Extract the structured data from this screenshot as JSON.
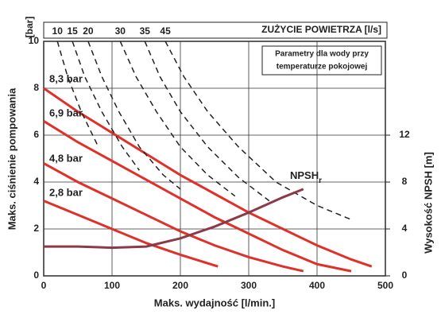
{
  "chart_data": {
    "type": "line",
    "y_unit": "[bar]",
    "y_label": "Maks. ciśnienie pompowania",
    "x_label": "Maks. wydajność [l/min.]",
    "y2_label": "Wysokość NPSH [m]",
    "top_label": "ZUŻYCIE POWIETRZA [l/s]",
    "note": [
      "Parametry dla wody przy",
      "temperaturze pokojowej"
    ],
    "xlim": [
      0,
      500
    ],
    "xticks": [
      0,
      100,
      200,
      300,
      400,
      500
    ],
    "ylim": [
      0,
      10
    ],
    "yticks": [
      0,
      2,
      4,
      6,
      8,
      10
    ],
    "y2lim": [
      0,
      20
    ],
    "y2ticks": [
      0,
      4,
      8,
      12
    ],
    "grid": true,
    "series": [
      {
        "name": "8,3 bar",
        "color": "#e0302a",
        "x": [
          0,
          50,
          100,
          150,
          200,
          250,
          300,
          350,
          400,
          450,
          480
        ],
        "values": [
          8.0,
          7.0,
          6.1,
          5.2,
          4.3,
          3.5,
          2.7,
          2.0,
          1.3,
          0.7,
          0.4
        ]
      },
      {
        "name": "6,9 bar",
        "color": "#e0302a",
        "x": [
          0,
          50,
          100,
          150,
          200,
          250,
          300,
          350,
          400,
          450
        ],
        "values": [
          6.6,
          5.7,
          4.9,
          4.1,
          3.3,
          2.5,
          1.8,
          1.1,
          0.5,
          0.2
        ]
      },
      {
        "name": "4,8 bar",
        "color": "#e0302a",
        "x": [
          0,
          50,
          100,
          150,
          200,
          250,
          300,
          350,
          380
        ],
        "values": [
          4.8,
          4.0,
          3.3,
          2.6,
          1.9,
          1.3,
          0.8,
          0.4,
          0.2
        ]
      },
      {
        "name": "2,8 bar",
        "color": "#e0302a",
        "x": [
          0,
          50,
          100,
          150,
          200,
          255
        ],
        "values": [
          3.2,
          2.6,
          2.0,
          1.4,
          0.9,
          0.4
        ]
      },
      {
        "name": "10",
        "color": "#222222",
        "dashed": true,
        "x": [
          20,
          35,
          55,
          80
        ],
        "values": [
          10,
          8.5,
          7,
          5.5
        ]
      },
      {
        "name": "15",
        "color": "#222222",
        "dashed": true,
        "x": [
          42,
          60,
          85,
          115,
          140
        ],
        "values": [
          10,
          8.5,
          7,
          5.5,
          4.5
        ]
      },
      {
        "name": "20",
        "color": "#222222",
        "dashed": true,
        "x": [
          65,
          85,
          110,
          140,
          175,
          200
        ],
        "values": [
          10,
          8.5,
          7,
          5.5,
          4.3,
          3.7
        ]
      },
      {
        "name": "30",
        "color": "#222222",
        "dashed": true,
        "x": [
          112,
          135,
          165,
          200,
          240,
          280
        ],
        "values": [
          10,
          8.5,
          7,
          5.5,
          4.3,
          3.4
        ]
      },
      {
        "name": "35",
        "color": "#222222",
        "dashed": true,
        "x": [
          148,
          170,
          200,
          240,
          285,
          330
        ],
        "values": [
          10,
          8.5,
          7,
          5.5,
          4.2,
          3.2
        ]
      },
      {
        "name": "45",
        "color": "#222222",
        "dashed": true,
        "x": [
          178,
          205,
          240,
          285,
          340,
          400,
          450
        ],
        "values": [
          10,
          8.5,
          7,
          5.5,
          4.0,
          3.0,
          2.4
        ]
      },
      {
        "name": "NPSH",
        "name_subscript": "r",
        "color": "#8b3a4a",
        "axis": "y2",
        "x": [
          0,
          50,
          100,
          150,
          200,
          250,
          300,
          350,
          380
        ],
        "values": [
          2.5,
          2.5,
          2.4,
          2.5,
          3.2,
          4.2,
          5.4,
          6.7,
          7.4
        ]
      }
    ]
  }
}
